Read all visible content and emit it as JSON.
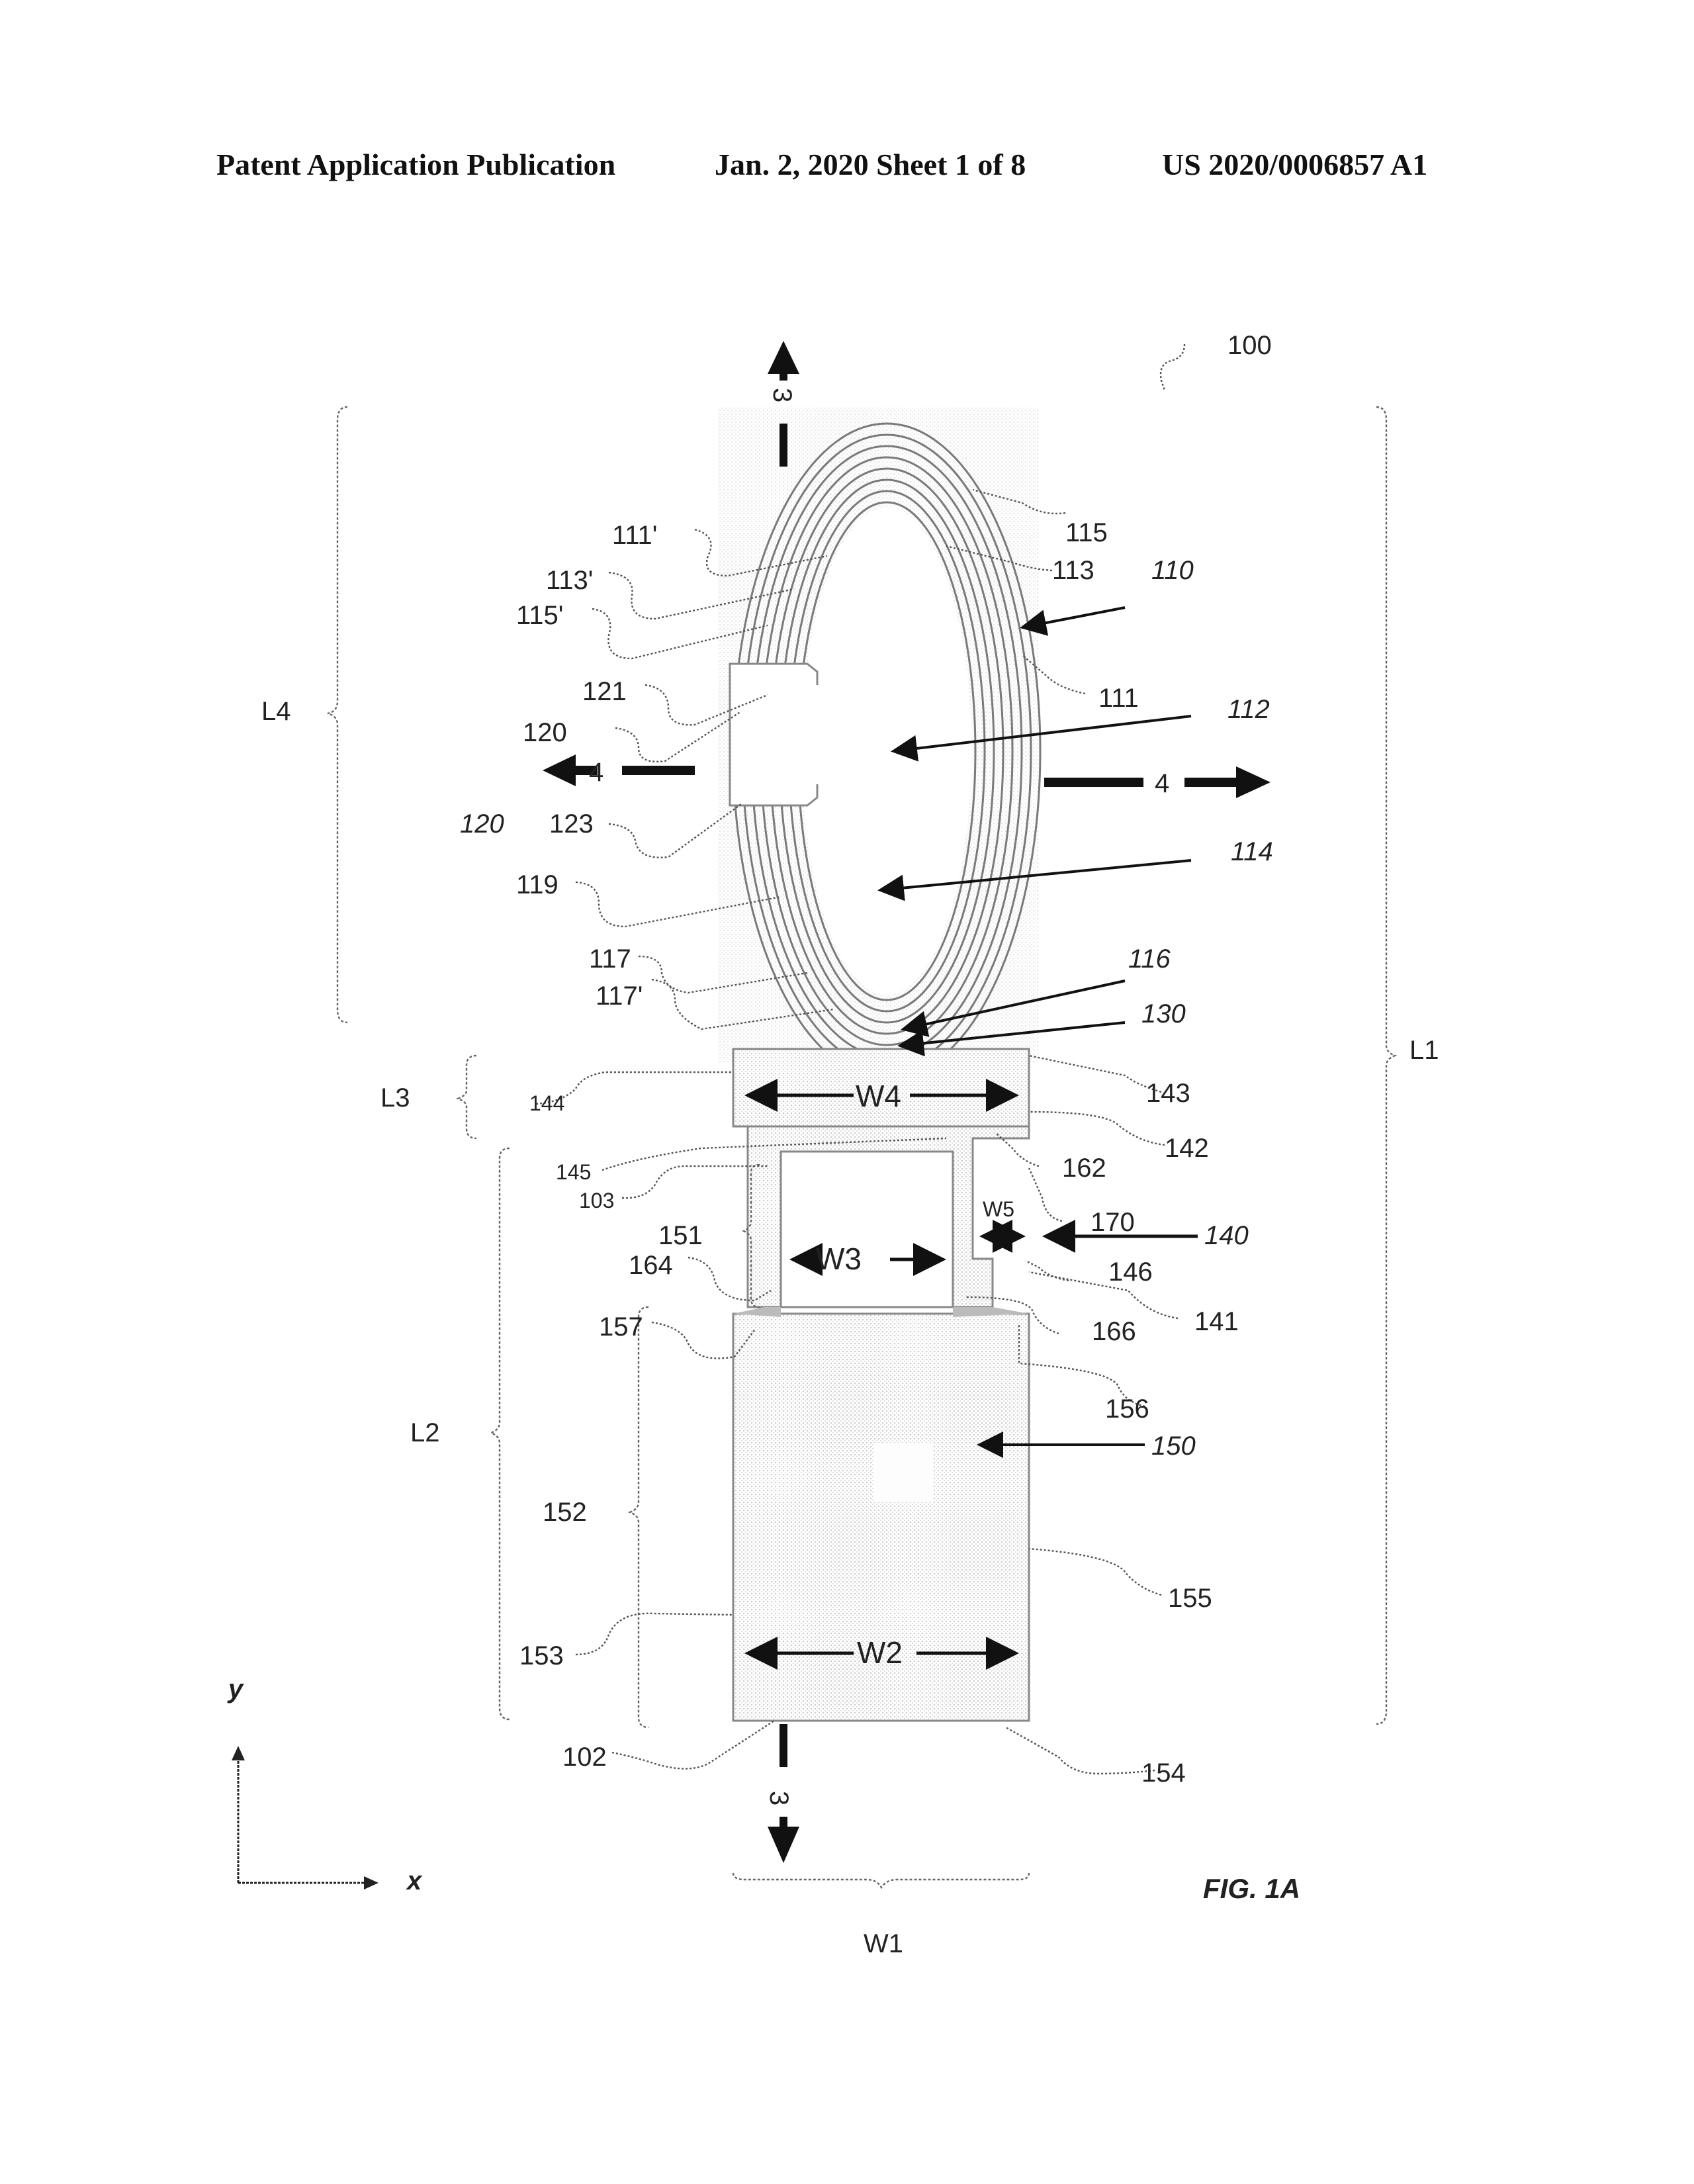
{
  "header": {
    "publication": "Patent Application Publication",
    "date_sheet": "Jan. 2, 2020   Sheet 1 of 8",
    "number": "US 2020/0006857 A1"
  },
  "figure": {
    "caption": "FIG. 1A",
    "ref_main": "100",
    "labels": {
      "l111p": "111'",
      "l113p": "113'",
      "l115p": "115'",
      "l115": "115",
      "l113": "113",
      "l110": "110",
      "l111": "111",
      "l121": "121",
      "l120a": "120",
      "l120b": "120",
      "l123": "123",
      "l112": "112",
      "l114": "114",
      "l119": "119",
      "l117": "117",
      "l117p": "117'",
      "l116": "116",
      "l130": "130",
      "l144": "144",
      "l143": "143",
      "l142": "142",
      "l145": "145",
      "l103": "103",
      "l162": "162",
      "l151": "151",
      "l164": "164",
      "l170": "170",
      "l140": "140",
      "l146": "146",
      "l141": "141",
      "l166": "166",
      "l157": "157",
      "l156": "156",
      "l150": "150",
      "l152": "152",
      "l155": "155",
      "l153": "153",
      "l102": "102",
      "l154": "154"
    },
    "dimensions": {
      "L1": "L1",
      "L2": "L2",
      "L3": "L3",
      "L4": "L4",
      "W1": "W1",
      "W2": "W2",
      "W3": "W3",
      "W4": "W4",
      "W5": "W5"
    },
    "section_marks": {
      "top": "3",
      "bottom": "3",
      "left": "4",
      "right": "4"
    },
    "axes": {
      "x": "x",
      "y": "y"
    }
  }
}
